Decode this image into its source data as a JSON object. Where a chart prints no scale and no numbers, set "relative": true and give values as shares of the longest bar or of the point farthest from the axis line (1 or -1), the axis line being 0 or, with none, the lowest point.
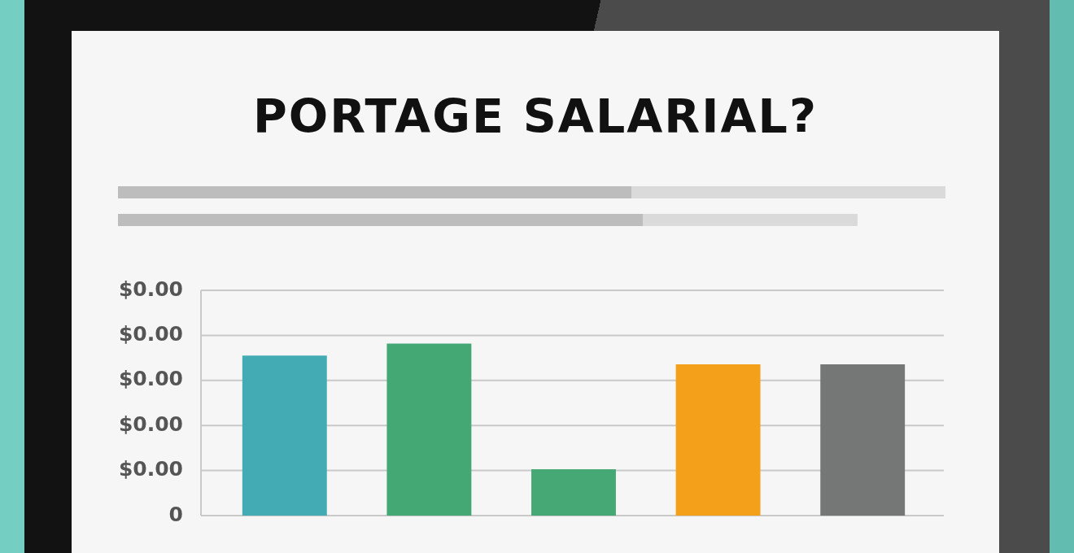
{
  "chart_data": {
    "type": "bar",
    "title": "PORTAGE SALARIAL?",
    "categories": [
      null,
      null,
      null,
      null,
      null
    ],
    "values": [
      0.93,
      1,
      0.27,
      0.88,
      0.88
    ],
    "colors": [
      "#43abb3",
      "#43a874",
      "#45a875",
      "#f5a01a",
      "#757776"
    ],
    "relative": true,
    "annotations": [
      "$0.00",
      "$0.00",
      "$0.00",
      "$0.00",
      "$0.00",
      "0"
    ],
    "grid": "y"
  }
}
